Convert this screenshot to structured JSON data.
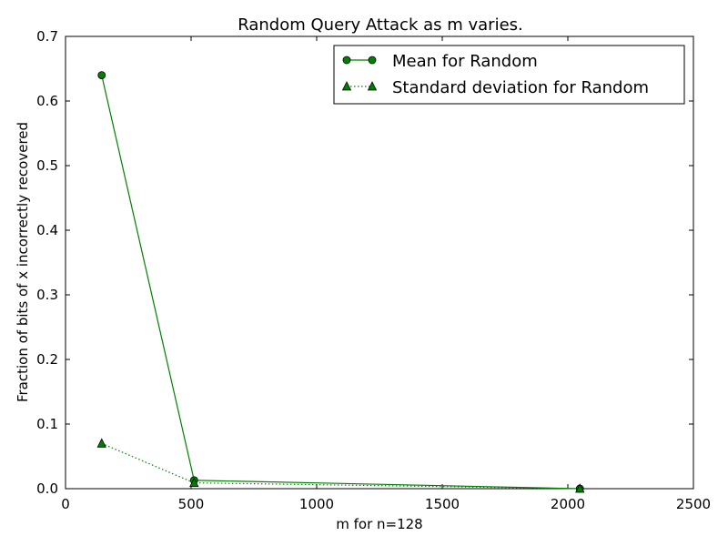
{
  "chart_data": {
    "type": "line",
    "title": "Random Query Attack as m varies.",
    "xlabel": "m for n=128",
    "ylabel": "Fraction of bits of x incorrectly recovered",
    "xlim": [
      0,
      2500
    ],
    "ylim": [
      0,
      0.7
    ],
    "xticks": [
      0,
      500,
      1000,
      1500,
      2000,
      2500
    ],
    "yticks": [
      0.0,
      0.1,
      0.2,
      0.3,
      0.4,
      0.5,
      0.6,
      0.7
    ],
    "xtick_labels": [
      "0",
      "500",
      "1000",
      "1500",
      "2000",
      "2500"
    ],
    "ytick_labels": [
      "0.0",
      "0.1",
      "0.2",
      "0.3",
      "0.4",
      "0.5",
      "0.6",
      "0.7"
    ],
    "grid": false,
    "legend_position": "top-right",
    "series": [
      {
        "name": "Mean for Random",
        "x": [
          144,
          512,
          2048
        ],
        "values": [
          0.64,
          0.013,
          0.0
        ],
        "color": "#008000",
        "line_style": "solid",
        "marker": "circle"
      },
      {
        "name": "Standard deviation for Random",
        "x": [
          144,
          512,
          2048
        ],
        "values": [
          0.07,
          0.009,
          0.0
        ],
        "color": "#008000",
        "line_style": "dotted",
        "marker": "triangle"
      }
    ]
  }
}
